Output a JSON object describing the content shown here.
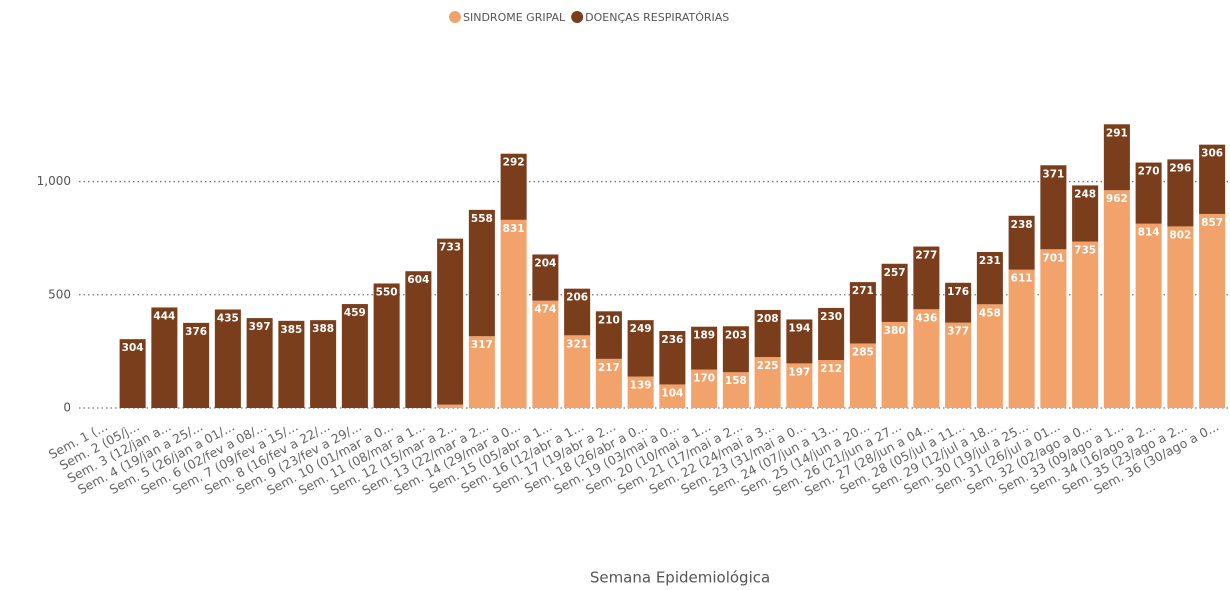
{
  "chart_data": {
    "type": "stacked_bar",
    "x_label": "Semana Epidemiológica",
    "categories": [
      "Sem. 1 (...",
      "Sem. 2 (05/j...",
      "Sem. 3 (12/jan a...",
      "Sem. 4 (19/jan a 25/...",
      "Sem. 5 (26/jan a 01/...",
      "Sem. 6 (02/fev a 08/...",
      "Sem. 7 (09/fev a 15/...",
      "Sem. 8 (16/fev a 22/...",
      "Sem. 9 (23/fev a 29/...",
      "Sem. 10 (01/mar a 0...",
      "Sem. 11 (08/mar a 1...",
      "Sem. 12 (15/mar a 2...",
      "Sem. 13 (22/mar a 2...",
      "Sem. 14 (29/mar a 0...",
      "Sem. 15 (05/abr a 1...",
      "Sem. 16 (12/abr a 1...",
      "Sem. 17 (19/abr a 2...",
      "Sem. 18 (26/abr a 0...",
      "Sem. 19 (03/mai a 0...",
      "Sem. 20 (10/mai a 1...",
      "Sem. 21 (17/mai a 2...",
      "Sem. 22 (24/mai a 3...",
      "Sem. 23 (31/mai a 0...",
      "Sem. 24 (07/jun a 13...",
      "Sem. 25 (14/jun a 20...",
      "Sem. 26 (21/jun a 27...",
      "Sem. 27 (28/jun a 04...",
      "Sem. 28 (05/jul a 11...",
      "Sem. 29 (12/jul a 18...",
      "Sem. 30 (19/jul a 25...",
      "Sem. 31 (26/jul a 01...",
      "Sem. 32 (02/ago a 0...",
      "Sem. 33 (09/ago a 1...",
      "Sem. 34 (16/ago a 2...",
      "Sem. 35 (23/ago a 2...",
      "Sem. 36 (30/ago a 0..."
    ],
    "series": [
      {
        "name": "SINDROME GRIPAL",
        "color": "#f2a36c",
        "values": [
          null,
          0,
          0,
          0,
          0,
          0,
          0,
          0,
          0,
          0,
          0,
          15,
          317,
          831,
          474,
          321,
          217,
          139,
          104,
          170,
          158,
          225,
          197,
          212,
          285,
          380,
          436,
          377,
          458,
          611,
          701,
          735,
          962,
          814,
          802,
          857
        ]
      },
      {
        "name": "DOENÇAS RESPIRATÓRIAS",
        "color": "#7a3e1c",
        "values": [
          null,
          304,
          444,
          376,
          435,
          397,
          385,
          388,
          459,
          550,
          604,
          733,
          558,
          292,
          204,
          206,
          210,
          249,
          236,
          189,
          203,
          208,
          194,
          230,
          271,
          257,
          277,
          176,
          231,
          238,
          371,
          248,
          291,
          270,
          296,
          306
        ]
      }
    ],
    "ylim": [
      0,
      1400
    ],
    "yticks": [
      0,
      500,
      {
        "value": 1000,
        "label": "1,000"
      }
    ],
    "grid": true,
    "legend": "top"
  }
}
